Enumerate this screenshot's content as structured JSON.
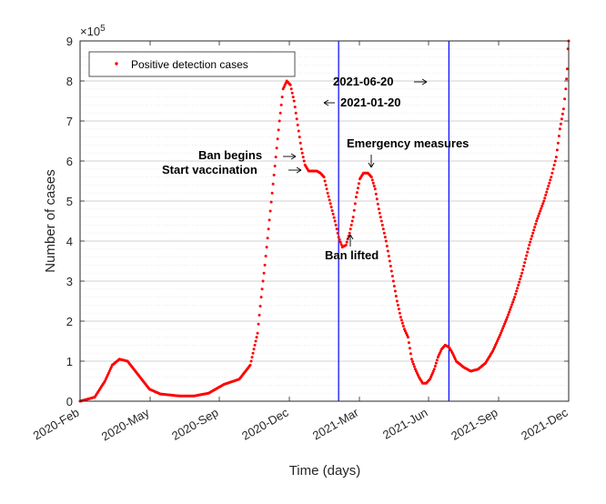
{
  "chart_data": {
    "type": "scatter",
    "xlabel": "Time (days)",
    "ylabel": "Number of cases",
    "exponent_label": "×10",
    "exponent_power": "5",
    "x_ticks": [
      "2020-Feb",
      "2020-May",
      "2020-Sep",
      "2020-Dec",
      "2021-Mar",
      "2021-Jun",
      "2021-Sep",
      "2021-Dec"
    ],
    "y_ticks": [
      0,
      1,
      2,
      3,
      4,
      5,
      6,
      7,
      8,
      9
    ],
    "ylim": [
      0,
      9
    ],
    "y_units": "×10^5",
    "grid": "minor horizontal",
    "legend": {
      "position": "top-left",
      "entries": [
        "Positive detection cases"
      ]
    },
    "series": [
      {
        "name": "Positive detection cases",
        "color": "#ff0000",
        "x": [
          "2020-02-01",
          "2020-02-21",
          "2020-03-06",
          "2020-03-16",
          "2020-03-26",
          "2020-04-06",
          "2020-04-21",
          "2020-05-06",
          "2020-05-21",
          "2020-06-16",
          "2020-07-06",
          "2020-07-26",
          "2020-08-16",
          "2020-09-06",
          "2020-09-21",
          "2020-10-01",
          "2020-10-06",
          "2020-10-11",
          "2020-10-16",
          "2020-10-21",
          "2020-10-26",
          "2020-10-31",
          "2020-11-05",
          "2020-11-10",
          "2020-11-15",
          "2020-11-20",
          "2020-11-25",
          "2020-11-30",
          "2020-12-05",
          "2020-12-10",
          "2020-12-16",
          "2020-12-21",
          "2020-12-26",
          "2020-12-31",
          "2021-01-05",
          "2021-01-10",
          "2021-01-15",
          "2021-01-20",
          "2021-01-25",
          "2021-01-30",
          "2021-02-04",
          "2021-02-09",
          "2021-02-13",
          "2021-02-18",
          "2021-02-23",
          "2021-03-01",
          "2021-03-06",
          "2021-03-11",
          "2021-03-16",
          "2021-03-21",
          "2021-03-26",
          "2021-03-31",
          "2021-04-05",
          "2021-04-10",
          "2021-04-15",
          "2021-04-20",
          "2021-04-25",
          "2021-04-30",
          "2021-05-05",
          "2021-05-10",
          "2021-05-15",
          "2021-05-20",
          "2021-05-25",
          "2021-05-31",
          "2021-06-05",
          "2021-06-10",
          "2021-06-15",
          "2021-06-20",
          "2021-06-25",
          "2021-06-30",
          "2021-07-10",
          "2021-07-20",
          "2021-07-30",
          "2021-08-09",
          "2021-08-19",
          "2021-08-29",
          "2021-09-08",
          "2021-09-18",
          "2021-09-28",
          "2021-10-08",
          "2021-10-18",
          "2021-10-28",
          "2021-11-07",
          "2021-11-14",
          "2021-11-19",
          "2021-11-24",
          "2021-11-27",
          "2021-11-29",
          "2021-11-30",
          "2021-12-01"
        ],
        "y": [
          0.0,
          0.1,
          0.5,
          0.9,
          1.05,
          1.0,
          0.65,
          0.3,
          0.18,
          0.13,
          0.13,
          0.2,
          0.42,
          0.55,
          0.9,
          1.7,
          2.6,
          3.4,
          4.3,
          5.2,
          6.1,
          7.0,
          7.8,
          8.0,
          7.9,
          7.5,
          6.9,
          6.3,
          5.9,
          5.75,
          5.75,
          5.75,
          5.7,
          5.6,
          5.2,
          4.85,
          4.5,
          4.1,
          3.85,
          3.9,
          4.2,
          4.6,
          5.1,
          5.55,
          5.7,
          5.7,
          5.6,
          5.3,
          4.8,
          4.4,
          4.0,
          3.5,
          3.0,
          2.5,
          2.1,
          1.8,
          1.6,
          1.05,
          0.8,
          0.6,
          0.45,
          0.45,
          0.55,
          0.8,
          1.1,
          1.3,
          1.4,
          1.35,
          1.2,
          1.0,
          0.85,
          0.75,
          0.8,
          0.95,
          1.25,
          1.65,
          2.1,
          2.6,
          3.2,
          3.9,
          4.5,
          5.0,
          5.6,
          6.1,
          6.8,
          7.3,
          7.8,
          8.3,
          8.8,
          9.0
        ]
      }
    ],
    "vertical_lines": [
      {
        "x": "2021-01-20",
        "color": "#0000ff"
      },
      {
        "x": "2021-06-20",
        "color": "#0000ff"
      }
    ],
    "annotations": {
      "date_start": "2021-01-20",
      "date_end": "2021-06-20",
      "ban_begins": "Ban begins",
      "start_vaccination": "Start vaccination",
      "emergency_measures": "Emergency measures",
      "ban_lifted": "Ban lifted"
    }
  }
}
